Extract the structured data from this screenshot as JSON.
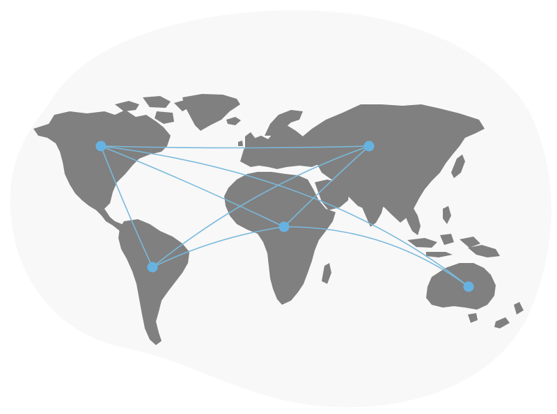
{
  "colors": {
    "background_blob": "#f8f8f8",
    "land": "#808080",
    "route": "#7ab9dc",
    "node": "#66b3e2"
  },
  "nodes": [
    {
      "id": "north-america"
    },
    {
      "id": "south-america"
    },
    {
      "id": "africa"
    },
    {
      "id": "asia"
    },
    {
      "id": "australia"
    }
  ],
  "routes": [
    {
      "from": "north-america",
      "to": "asia"
    },
    {
      "from": "north-america",
      "to": "africa"
    },
    {
      "from": "north-america",
      "to": "south-america"
    },
    {
      "from": "north-america",
      "to": "australia"
    },
    {
      "from": "south-america",
      "to": "africa"
    },
    {
      "from": "south-america",
      "to": "asia"
    },
    {
      "from": "africa",
      "to": "asia"
    },
    {
      "from": "africa",
      "to": "australia"
    }
  ]
}
